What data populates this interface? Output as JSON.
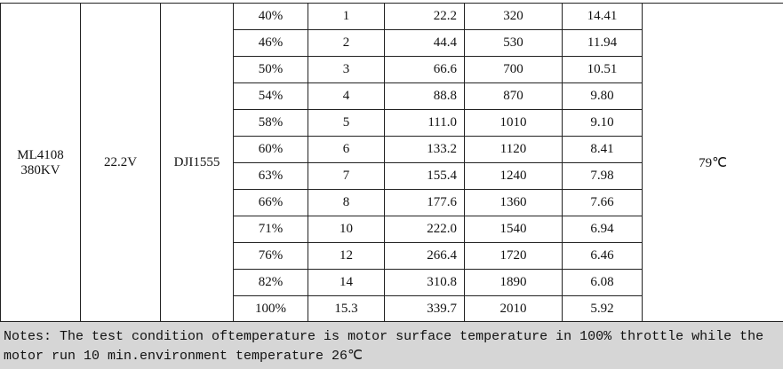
{
  "table": {
    "motor": [
      "ML4108",
      "380KV"
    ],
    "voltage": "22.2V",
    "propeller": "DJI1555",
    "temperature": "79℃",
    "rows": [
      [
        "40%",
        "1",
        "22.2",
        "320",
        "14.41"
      ],
      [
        "46%",
        "2",
        "44.4",
        "530",
        "11.94"
      ],
      [
        "50%",
        "3",
        "66.6",
        "700",
        "10.51"
      ],
      [
        "54%",
        "4",
        "88.8",
        "870",
        "9.80"
      ],
      [
        "58%",
        "5",
        "111.0",
        "1010",
        "9.10"
      ],
      [
        "60%",
        "6",
        "133.2",
        "1120",
        "8.41"
      ],
      [
        "63%",
        "7",
        "155.4",
        "1240",
        "7.98"
      ],
      [
        "66%",
        "8",
        "177.6",
        "1360",
        "7.66"
      ],
      [
        "71%",
        "10",
        "222.0",
        "1540",
        "6.94"
      ],
      [
        "76%",
        "12",
        "266.4",
        "1720",
        "6.46"
      ],
      [
        "82%",
        "14",
        "310.8",
        "1890",
        "6.08"
      ],
      [
        "100%",
        "15.3",
        "339.7",
        "2010",
        "5.92"
      ]
    ]
  },
  "notes": "Notes: The test condition oftemperature is motor surface temperature in 100% throttle while the motor run 10 min.environment temperature 26℃"
}
